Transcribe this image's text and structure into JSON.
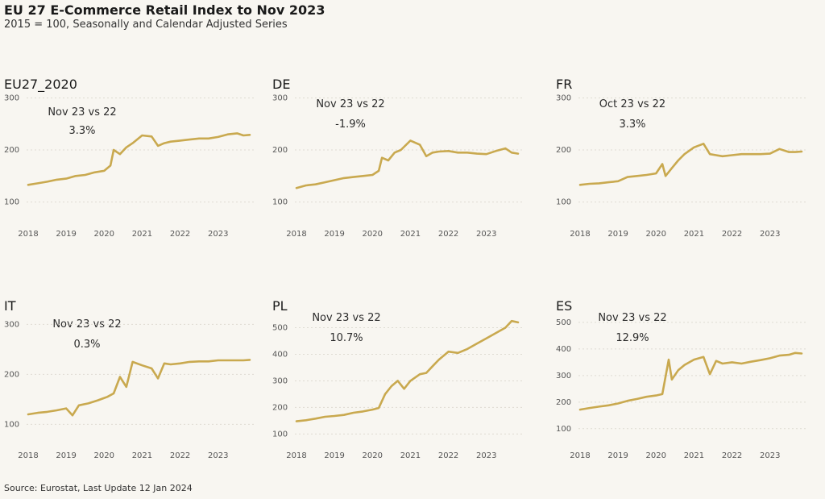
{
  "header": {
    "title": "EU 27 E-Commerce Retail Index to Nov 2023",
    "subtitle": "2015 = 100, Seasonally and Calendar Adjusted Series"
  },
  "footer": {
    "source": "Source: Eurostat, Last Update 12 Jan 2024"
  },
  "colors": {
    "line": "#c9a94f",
    "background": "#f8f6f1",
    "grid": "#dedbd2"
  },
  "chart_data": [
    {
      "type": "line",
      "label": "EU27_2020",
      "annotation": {
        "label": "Nov 23 vs 22",
        "value": "3.3%"
      },
      "x_ticks": [
        "2018",
        "2019",
        "2020",
        "2021",
        "2022",
        "2023"
      ],
      "y_ticks": [
        100,
        200,
        300
      ],
      "xlim": [
        "2018-01",
        "2023-11"
      ],
      "ylim": [
        70,
        310
      ],
      "grid": true,
      "x": [
        "2018-01",
        "2018-04",
        "2018-07",
        "2018-10",
        "2019-01",
        "2019-04",
        "2019-07",
        "2019-10",
        "2020-01",
        "2020-03",
        "2020-04",
        "2020-06",
        "2020-08",
        "2020-10",
        "2021-01",
        "2021-04",
        "2021-06",
        "2021-08",
        "2021-10",
        "2022-01",
        "2022-04",
        "2022-07",
        "2022-10",
        "2023-01",
        "2023-04",
        "2023-07",
        "2023-09",
        "2023-11"
      ],
      "y": [
        133,
        136,
        139,
        143,
        145,
        150,
        152,
        157,
        160,
        170,
        200,
        192,
        205,
        213,
        228,
        226,
        208,
        213,
        216,
        218,
        220,
        222,
        222,
        225,
        230,
        232,
        228,
        229
      ]
    },
    {
      "type": "line",
      "label": "DE",
      "annotation": {
        "label": "Nov 23 vs 22",
        "value": "-1.9%"
      },
      "x_ticks": [
        "2018",
        "2019",
        "2020",
        "2021",
        "2022",
        "2023"
      ],
      "y_ticks": [
        100,
        200,
        300
      ],
      "xlim": [
        "2018-01",
        "2023-11"
      ],
      "ylim": [
        70,
        310
      ],
      "grid": true,
      "x": [
        "2018-01",
        "2018-04",
        "2018-07",
        "2018-10",
        "2019-01",
        "2019-04",
        "2019-07",
        "2019-10",
        "2020-01",
        "2020-03",
        "2020-04",
        "2020-06",
        "2020-08",
        "2020-10",
        "2021-01",
        "2021-04",
        "2021-06",
        "2021-08",
        "2021-10",
        "2022-01",
        "2022-04",
        "2022-07",
        "2022-10",
        "2023-01",
        "2023-04",
        "2023-07",
        "2023-09",
        "2023-11"
      ],
      "y": [
        127,
        132,
        134,
        138,
        142,
        146,
        148,
        150,
        152,
        160,
        185,
        180,
        195,
        200,
        218,
        210,
        188,
        195,
        197,
        198,
        195,
        195,
        193,
        192,
        198,
        203,
        195,
        193
      ]
    },
    {
      "type": "line",
      "label": "FR",
      "annotation": {
        "label": "Oct 23 vs 22",
        "value": "3.3%"
      },
      "x_ticks": [
        "2018",
        "2019",
        "2020",
        "2021",
        "2022",
        "2023"
      ],
      "y_ticks": [
        100,
        200,
        300
      ],
      "xlim": [
        "2018-01",
        "2023-11"
      ],
      "ylim": [
        70,
        310
      ],
      "grid": true,
      "x": [
        "2018-01",
        "2018-04",
        "2018-07",
        "2018-10",
        "2019-01",
        "2019-04",
        "2019-07",
        "2019-10",
        "2020-01",
        "2020-03",
        "2020-04",
        "2020-06",
        "2020-08",
        "2020-10",
        "2021-01",
        "2021-04",
        "2021-06",
        "2021-08",
        "2021-10",
        "2022-01",
        "2022-04",
        "2022-07",
        "2022-10",
        "2023-01",
        "2023-04",
        "2023-07",
        "2023-09",
        "2023-11"
      ],
      "y": [
        133,
        135,
        136,
        138,
        140,
        148,
        150,
        152,
        155,
        173,
        150,
        165,
        180,
        192,
        205,
        212,
        192,
        190,
        188,
        190,
        192,
        192,
        192,
        193,
        202,
        196,
        196,
        197
      ]
    },
    {
      "type": "line",
      "label": "IT",
      "annotation": {
        "label": "Nov 23 vs 22",
        "value": "0.3%"
      },
      "x_ticks": [
        "2018",
        "2019",
        "2020",
        "2021",
        "2022",
        "2023"
      ],
      "y_ticks": [
        100,
        200,
        300
      ],
      "xlim": [
        "2018-01",
        "2023-11"
      ],
      "ylim": [
        70,
        320
      ],
      "grid": true,
      "x": [
        "2018-01",
        "2018-04",
        "2018-07",
        "2018-10",
        "2019-01",
        "2019-03",
        "2019-05",
        "2019-08",
        "2019-11",
        "2020-02",
        "2020-04",
        "2020-06",
        "2020-08",
        "2020-10",
        "2021-01",
        "2021-04",
        "2021-06",
        "2021-08",
        "2021-10",
        "2022-01",
        "2022-04",
        "2022-07",
        "2022-10",
        "2023-01",
        "2023-04",
        "2023-07",
        "2023-09",
        "2023-11"
      ],
      "y": [
        120,
        123,
        125,
        128,
        132,
        118,
        138,
        142,
        148,
        155,
        162,
        195,
        175,
        225,
        218,
        212,
        192,
        222,
        220,
        222,
        225,
        226,
        226,
        228,
        228,
        228,
        228,
        229
      ]
    },
    {
      "type": "line",
      "label": "PL",
      "annotation": {
        "label": "Nov 23 vs 22",
        "value": "10.7%"
      },
      "x_ticks": [
        "2018",
        "2019",
        "2020",
        "2021",
        "2022",
        "2023"
      ],
      "y_ticks": [
        100,
        200,
        300,
        400,
        500
      ],
      "xlim": [
        "2018-01",
        "2023-11"
      ],
      "ylim": [
        80,
        550
      ],
      "grid": true,
      "x": [
        "2018-01",
        "2018-04",
        "2018-07",
        "2018-10",
        "2019-01",
        "2019-04",
        "2019-07",
        "2019-10",
        "2020-01",
        "2020-03",
        "2020-05",
        "2020-07",
        "2020-09",
        "2020-11",
        "2021-01",
        "2021-04",
        "2021-06",
        "2021-08",
        "2021-10",
        "2022-01",
        "2022-04",
        "2022-07",
        "2022-10",
        "2023-01",
        "2023-04",
        "2023-07",
        "2023-09",
        "2023-11"
      ],
      "y": [
        148,
        152,
        158,
        165,
        168,
        172,
        180,
        185,
        192,
        198,
        250,
        280,
        300,
        270,
        300,
        325,
        330,
        355,
        380,
        410,
        405,
        420,
        440,
        460,
        480,
        500,
        525,
        520
      ]
    },
    {
      "type": "line",
      "label": "ES",
      "annotation": {
        "label": "Nov 23 vs 22",
        "value": "12.9%"
      },
      "x_ticks": [
        "2018",
        "2019",
        "2020",
        "2021",
        "2022",
        "2023"
      ],
      "y_ticks": [
        100,
        200,
        300,
        400,
        500
      ],
      "xlim": [
        "2018-01",
        "2023-11"
      ],
      "ylim": [
        60,
        530
      ],
      "grid": true,
      "x": [
        "2018-01",
        "2018-04",
        "2018-07",
        "2018-10",
        "2019-01",
        "2019-04",
        "2019-07",
        "2019-10",
        "2020-01",
        "2020-03",
        "2020-05",
        "2020-06",
        "2020-08",
        "2020-10",
        "2021-01",
        "2021-04",
        "2021-06",
        "2021-08",
        "2021-10",
        "2022-01",
        "2022-04",
        "2022-07",
        "2022-10",
        "2023-01",
        "2023-04",
        "2023-07",
        "2023-09",
        "2023-11"
      ],
      "y": [
        172,
        178,
        183,
        188,
        195,
        205,
        212,
        220,
        225,
        230,
        360,
        285,
        320,
        340,
        360,
        370,
        305,
        355,
        345,
        350,
        345,
        352,
        358,
        365,
        375,
        378,
        385,
        383
      ]
    }
  ]
}
